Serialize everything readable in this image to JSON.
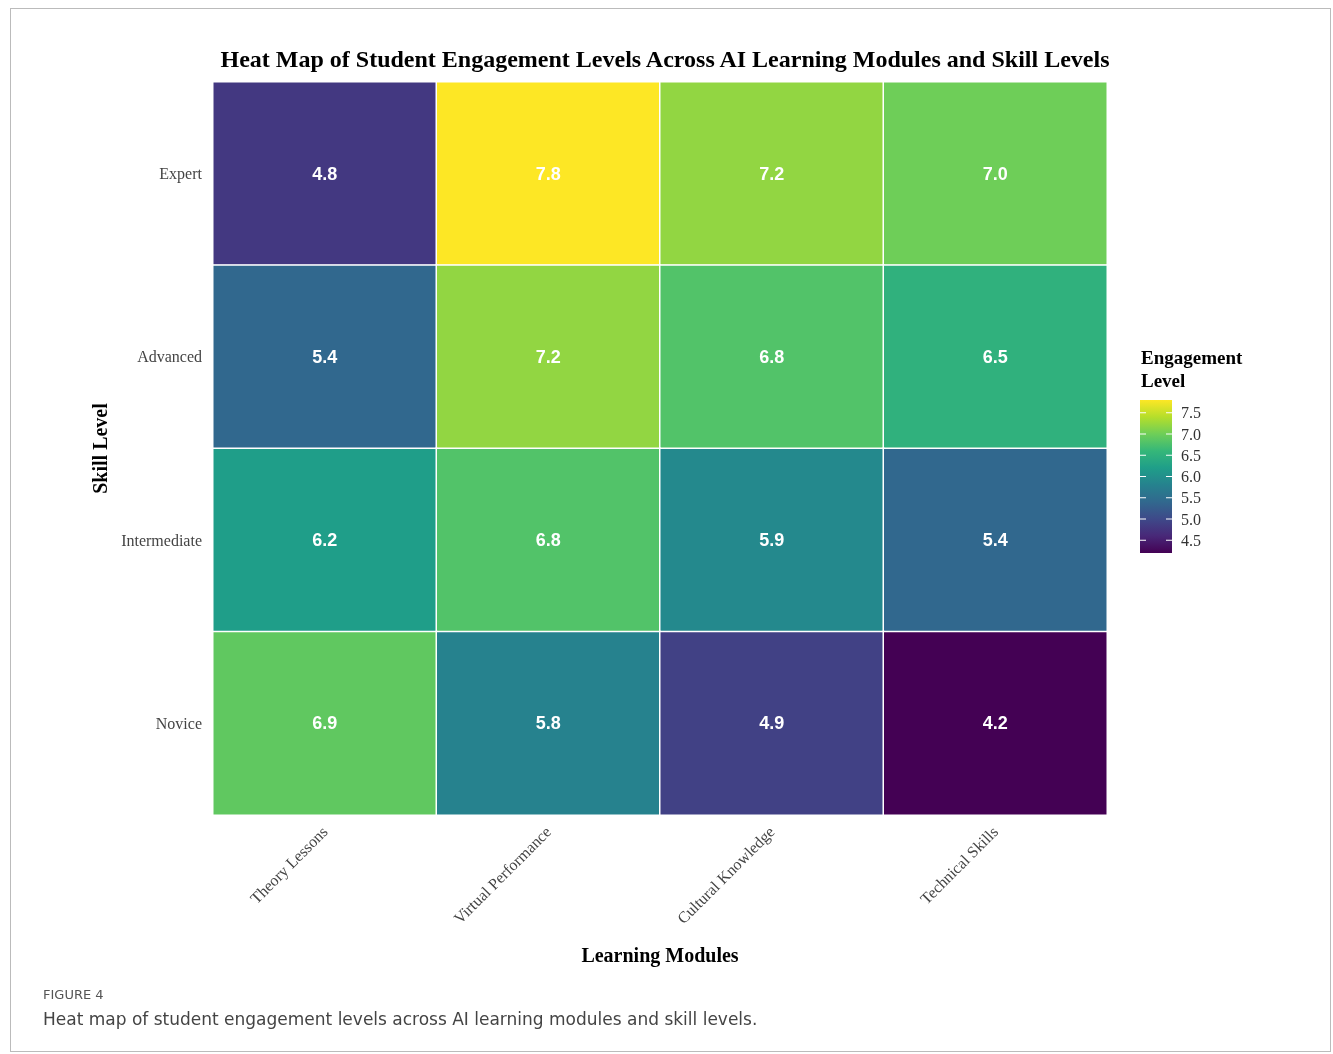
{
  "chart_data": {
    "type": "heatmap",
    "title": "Heat Map of Student Engagement Levels Across AI Learning Modules and Skill Levels",
    "xlabel": "Learning Modules",
    "ylabel": "Skill Level",
    "legend_title": "Engagement Level",
    "categories": [
      "Theory Lessons",
      "Virtual Performance",
      "Cultural Knowledge",
      "Technical Skills"
    ],
    "y_categories": [
      "Expert",
      "Advanced",
      "Intermediate",
      "Novice"
    ],
    "cells": [
      [
        4.8,
        7.8,
        7.2,
        7.0
      ],
      [
        5.4,
        7.2,
        6.8,
        6.5
      ],
      [
        6.2,
        6.8,
        5.9,
        5.4
      ],
      [
        6.9,
        5.8,
        4.9,
        4.2
      ]
    ],
    "cell_labels": [
      [
        "4.8",
        "7.8",
        "7.2",
        "7.0"
      ],
      [
        "5.4",
        "7.2",
        "6.8",
        "6.5"
      ],
      [
        "6.2",
        "6.8",
        "5.9",
        "5.4"
      ],
      [
        "6.9",
        "5.8",
        "4.9",
        "4.2"
      ]
    ],
    "clim": [
      4.2,
      7.8
    ],
    "cticks": [
      4.5,
      {
        "value": 5,
        "label": "5.0"
      },
      5.5,
      {
        "value": 6,
        "label": "6.0"
      },
      6.5,
      {
        "value": 7,
        "label": "7.0"
      },
      7.5
    ],
    "annotations": [
      "FIGURE 4",
      "Heat map of student engagement levels across AI learning modules and skill levels."
    ]
  }
}
